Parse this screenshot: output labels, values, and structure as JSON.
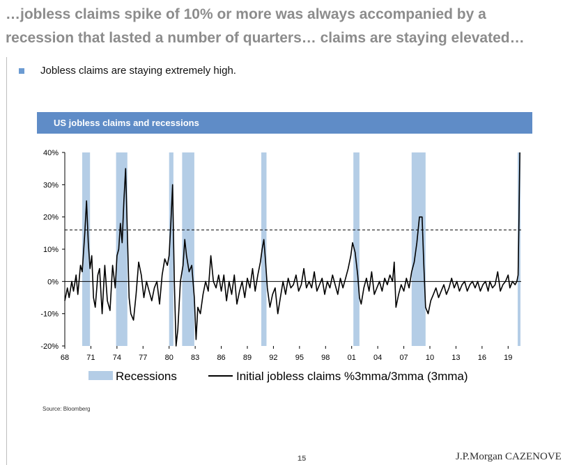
{
  "slide": {
    "headline_line1": "…jobless claims spike of 10% or more was always accompanied by a",
    "headline_line2": "recession that lasted a number of quarters… claims are staying elevated…",
    "bullet": "Jobless claims are staying extremely high.",
    "source": "Source: Bloomberg",
    "page_number": "15",
    "logo": "J.P.Morgan CAZENOVE",
    "colors": {
      "headline": "#8c8c8c",
      "bullet_square": "#6b9bd2",
      "chart_header": "#5f8cc7",
      "recession_band": "#b4cde6",
      "line": "#000000"
    }
  },
  "chart_data": {
    "type": "line",
    "title": "US jobless claims and recessions",
    "xlabel": "",
    "ylabel": "",
    "x_range": [
      1968.0,
      2020.5
    ],
    "ylim": [
      -20,
      40
    ],
    "y_ticks": [
      40,
      30,
      20,
      10,
      0,
      -10,
      -20
    ],
    "y_tick_labels": [
      "40%",
      "30%",
      "20%",
      "10%",
      "0%",
      "-10%",
      "-20%"
    ],
    "x_ticks": [
      1968,
      1971,
      1974,
      1977,
      1980,
      1983,
      1986,
      1989,
      1992,
      1995,
      1998,
      2001,
      2004,
      2007,
      2010,
      2013,
      2016,
      2019
    ],
    "x_tick_labels": [
      "68",
      "71",
      "74",
      "77",
      "80",
      "83",
      "86",
      "89",
      "92",
      "95",
      "98",
      "01",
      "04",
      "07",
      "10",
      "13",
      "16",
      "19"
    ],
    "threshold": 16,
    "legend": [
      "Recessions",
      "Initial jobless claims %3mma/3mma (3mma)"
    ],
    "legend_position": "bottom",
    "recessions": [
      [
        1970.0,
        1970.9
      ],
      [
        1973.9,
        1975.2
      ],
      [
        1980.0,
        1980.5
      ],
      [
        1981.5,
        1982.9
      ],
      [
        1990.6,
        1991.2
      ],
      [
        2001.2,
        2001.9
      ],
      [
        2007.9,
        2009.5
      ],
      [
        2020.1,
        2020.4
      ]
    ],
    "series": [
      {
        "name": "Initial jobless claims %3mma/3mma (3mma)",
        "points": [
          [
            1968.0,
            -6
          ],
          [
            1968.3,
            -2
          ],
          [
            1968.5,
            -5
          ],
          [
            1968.8,
            0
          ],
          [
            1969.0,
            -3
          ],
          [
            1969.3,
            2
          ],
          [
            1969.5,
            -4
          ],
          [
            1969.8,
            5
          ],
          [
            1970.0,
            3
          ],
          [
            1970.3,
            15
          ],
          [
            1970.5,
            25
          ],
          [
            1970.7,
            12
          ],
          [
            1970.9,
            4
          ],
          [
            1971.1,
            8
          ],
          [
            1971.3,
            -5
          ],
          [
            1971.5,
            -8
          ],
          [
            1971.8,
            2
          ],
          [
            1972.0,
            4
          ],
          [
            1972.3,
            -10
          ],
          [
            1972.6,
            5
          ],
          [
            1972.9,
            -6
          ],
          [
            1973.2,
            -9
          ],
          [
            1973.5,
            5
          ],
          [
            1973.8,
            -2
          ],
          [
            1974.0,
            8
          ],
          [
            1974.2,
            10
          ],
          [
            1974.4,
            18
          ],
          [
            1974.6,
            12
          ],
          [
            1974.8,
            25
          ],
          [
            1975.0,
            35
          ],
          [
            1975.2,
            15
          ],
          [
            1975.4,
            -5
          ],
          [
            1975.6,
            -10
          ],
          [
            1975.9,
            -12
          ],
          [
            1976.2,
            -4
          ],
          [
            1976.5,
            6
          ],
          [
            1976.8,
            2
          ],
          [
            1977.1,
            -5
          ],
          [
            1977.4,
            0
          ],
          [
            1977.7,
            -3
          ],
          [
            1978.0,
            -6
          ],
          [
            1978.3,
            -2
          ],
          [
            1978.6,
            0
          ],
          [
            1978.9,
            -7
          ],
          [
            1979.2,
            2
          ],
          [
            1979.5,
            7
          ],
          [
            1979.8,
            5
          ],
          [
            1980.0,
            8
          ],
          [
            1980.2,
            18
          ],
          [
            1980.4,
            30
          ],
          [
            1980.6,
            0
          ],
          [
            1980.8,
            -20
          ],
          [
            1981.0,
            -15
          ],
          [
            1981.3,
            0
          ],
          [
            1981.6,
            5
          ],
          [
            1981.8,
            13
          ],
          [
            1982.0,
            8
          ],
          [
            1982.3,
            3
          ],
          [
            1982.6,
            5
          ],
          [
            1982.9,
            -5
          ],
          [
            1983.1,
            -18
          ],
          [
            1983.3,
            -8
          ],
          [
            1983.6,
            -10
          ],
          [
            1983.9,
            -4
          ],
          [
            1984.2,
            0
          ],
          [
            1984.5,
            -3
          ],
          [
            1984.8,
            8
          ],
          [
            1985.1,
            0
          ],
          [
            1985.4,
            -2
          ],
          [
            1985.7,
            2
          ],
          [
            1986.0,
            -3
          ],
          [
            1986.3,
            2
          ],
          [
            1986.6,
            -6
          ],
          [
            1986.9,
            0
          ],
          [
            1987.2,
            -4
          ],
          [
            1987.5,
            2
          ],
          [
            1987.8,
            -7
          ],
          [
            1988.1,
            -3
          ],
          [
            1988.4,
            0
          ],
          [
            1988.7,
            -5
          ],
          [
            1989.0,
            1
          ],
          [
            1989.3,
            -2
          ],
          [
            1989.6,
            4
          ],
          [
            1989.9,
            -3
          ],
          [
            1990.2,
            2
          ],
          [
            1990.5,
            6
          ],
          [
            1990.7,
            10
          ],
          [
            1990.9,
            13
          ],
          [
            1991.1,
            6
          ],
          [
            1991.3,
            -2
          ],
          [
            1991.6,
            -8
          ],
          [
            1991.9,
            -4
          ],
          [
            1992.2,
            -2
          ],
          [
            1992.5,
            -10
          ],
          [
            1992.8,
            -5
          ],
          [
            1993.1,
            0
          ],
          [
            1993.4,
            -4
          ],
          [
            1993.7,
            1
          ],
          [
            1994.0,
            -2
          ],
          [
            1994.3,
            -1
          ],
          [
            1994.6,
            2
          ],
          [
            1994.9,
            -3
          ],
          [
            1995.2,
            -1
          ],
          [
            1995.5,
            4
          ],
          [
            1995.8,
            -2
          ],
          [
            1996.1,
            0
          ],
          [
            1996.4,
            -2
          ],
          [
            1996.7,
            3
          ],
          [
            1997.0,
            -3
          ],
          [
            1997.3,
            -1
          ],
          [
            1997.6,
            1
          ],
          [
            1997.9,
            -4
          ],
          [
            1998.2,
            0
          ],
          [
            1998.5,
            -2
          ],
          [
            1998.8,
            2
          ],
          [
            1999.1,
            -1
          ],
          [
            1999.4,
            -4
          ],
          [
            1999.7,
            1
          ],
          [
            2000.0,
            -2
          ],
          [
            2000.3,
            1
          ],
          [
            2000.6,
            4
          ],
          [
            2000.9,
            8
          ],
          [
            2001.1,
            12
          ],
          [
            2001.4,
            9
          ],
          [
            2001.7,
            2
          ],
          [
            2001.9,
            -5
          ],
          [
            2002.1,
            -7
          ],
          [
            2002.4,
            -2
          ],
          [
            2002.7,
            1
          ],
          [
            2003.0,
            -3
          ],
          [
            2003.3,
            3
          ],
          [
            2003.6,
            -4
          ],
          [
            2003.9,
            -2
          ],
          [
            2004.2,
            0
          ],
          [
            2004.5,
            -3
          ],
          [
            2004.8,
            1
          ],
          [
            2005.1,
            -1
          ],
          [
            2005.4,
            2
          ],
          [
            2005.7,
            0
          ],
          [
            2005.9,
            6
          ],
          [
            2006.1,
            -8
          ],
          [
            2006.4,
            -4
          ],
          [
            2006.7,
            -1
          ],
          [
            2007.0,
            -3
          ],
          [
            2007.3,
            1
          ],
          [
            2007.6,
            -2
          ],
          [
            2007.9,
            3
          ],
          [
            2008.2,
            6
          ],
          [
            2008.5,
            12
          ],
          [
            2008.8,
            20
          ],
          [
            2009.1,
            20
          ],
          [
            2009.3,
            5
          ],
          [
            2009.5,
            -8
          ],
          [
            2009.8,
            -10
          ],
          [
            2010.1,
            -6
          ],
          [
            2010.4,
            -4
          ],
          [
            2010.7,
            -2
          ],
          [
            2011.0,
            -5
          ],
          [
            2011.3,
            -3
          ],
          [
            2011.6,
            -1
          ],
          [
            2011.9,
            -4
          ],
          [
            2012.2,
            -2
          ],
          [
            2012.5,
            1
          ],
          [
            2012.8,
            -2
          ],
          [
            2013.1,
            0
          ],
          [
            2013.4,
            -3
          ],
          [
            2013.7,
            -1
          ],
          [
            2014.0,
            0
          ],
          [
            2014.3,
            -3
          ],
          [
            2014.6,
            -1
          ],
          [
            2014.9,
            0
          ],
          [
            2015.2,
            -2
          ],
          [
            2015.5,
            0
          ],
          [
            2015.8,
            -3
          ],
          [
            2016.1,
            -1
          ],
          [
            2016.4,
            0
          ],
          [
            2016.7,
            -3
          ],
          [
            2016.9,
            0
          ],
          [
            2017.2,
            -2
          ],
          [
            2017.5,
            -1
          ],
          [
            2017.8,
            3
          ],
          [
            2018.1,
            -3
          ],
          [
            2018.4,
            -1
          ],
          [
            2018.7,
            0
          ],
          [
            2019.0,
            2
          ],
          [
            2019.2,
            -2
          ],
          [
            2019.5,
            0
          ],
          [
            2019.8,
            -1
          ],
          [
            2020.0,
            0
          ],
          [
            2020.15,
            2
          ],
          [
            2020.25,
            20
          ],
          [
            2020.35,
            40
          ]
        ]
      }
    ]
  }
}
